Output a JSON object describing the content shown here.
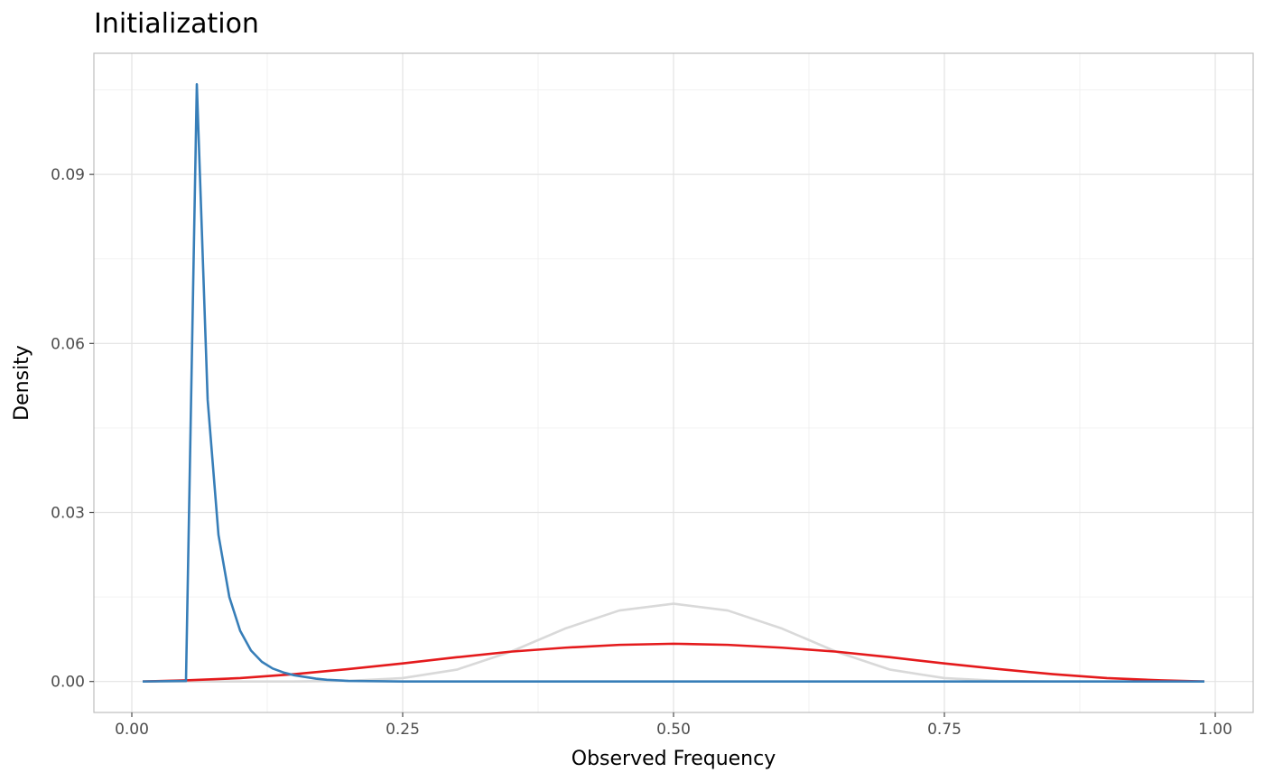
{
  "chart_data": {
    "type": "line",
    "title": "Initialization",
    "xlabel": "Observed Frequency",
    "ylabel": "Density",
    "xlim": [
      -0.035,
      1.035
    ],
    "ylim": [
      -0.0055,
      0.1115
    ],
    "x_ticks": [
      0,
      0.25,
      0.5,
      0.75,
      1
    ],
    "x_tick_labels": [
      "0.00",
      "0.25",
      "0.50",
      "0.75",
      "1.00"
    ],
    "y_ticks": [
      0,
      0.03,
      0.06,
      0.09
    ],
    "y_tick_labels": [
      "0.00",
      "0.03",
      "0.06",
      "0.09"
    ],
    "x_minor": [
      0.125,
      0.375,
      0.625,
      0.875
    ],
    "y_minor": [
      0.015,
      0.045,
      0.075,
      0.105
    ],
    "grid": true,
    "legend": "none",
    "series": [
      {
        "color": "#d9d9d9",
        "x": [
          0.01,
          0.05,
          0.1,
          0.15,
          0.2,
          0.25,
          0.3,
          0.35,
          0.4,
          0.45,
          0.5,
          0.55,
          0.6,
          0.65,
          0.7,
          0.75,
          0.8,
          0.85,
          0.9,
          0.95,
          0.99
        ],
        "values": [
          0,
          0,
          0,
          0,
          0.0001,
          0.0006,
          0.0021,
          0.0053,
          0.0094,
          0.0126,
          0.0138,
          0.0126,
          0.0094,
          0.0053,
          0.0021,
          0.0006,
          0.0001,
          0,
          0,
          0,
          0
        ]
      },
      {
        "color": "#e41a1c",
        "x": [
          0.01,
          0.05,
          0.1,
          0.15,
          0.2,
          0.25,
          0.3,
          0.35,
          0.4,
          0.45,
          0.5,
          0.55,
          0.6,
          0.65,
          0.7,
          0.75,
          0.8,
          0.85,
          0.9,
          0.95,
          0.99
        ],
        "values": [
          0,
          0.0002,
          0.0006,
          0.0013,
          0.0022,
          0.0032,
          0.0043,
          0.0053,
          0.006,
          0.0065,
          0.0067,
          0.0065,
          0.006,
          0.0053,
          0.0043,
          0.0032,
          0.0022,
          0.0013,
          0.0006,
          0.0002,
          0
        ]
      },
      {
        "color": "#377eb8",
        "x": [
          0.01,
          0.05,
          0.06,
          0.07,
          0.08,
          0.09,
          0.1,
          0.11,
          0.12,
          0.13,
          0.14,
          0.15,
          0.16,
          0.17,
          0.18,
          0.2,
          0.25,
          0.3,
          0.5,
          0.75,
          0.99
        ],
        "values": [
          0,
          0.0001,
          0.106,
          0.05,
          0.026,
          0.015,
          0.009,
          0.0055,
          0.0035,
          0.0023,
          0.0016,
          0.0011,
          0.0008,
          0.0005,
          0.0003,
          0.0001,
          0,
          0,
          0,
          0,
          0
        ]
      }
    ]
  }
}
